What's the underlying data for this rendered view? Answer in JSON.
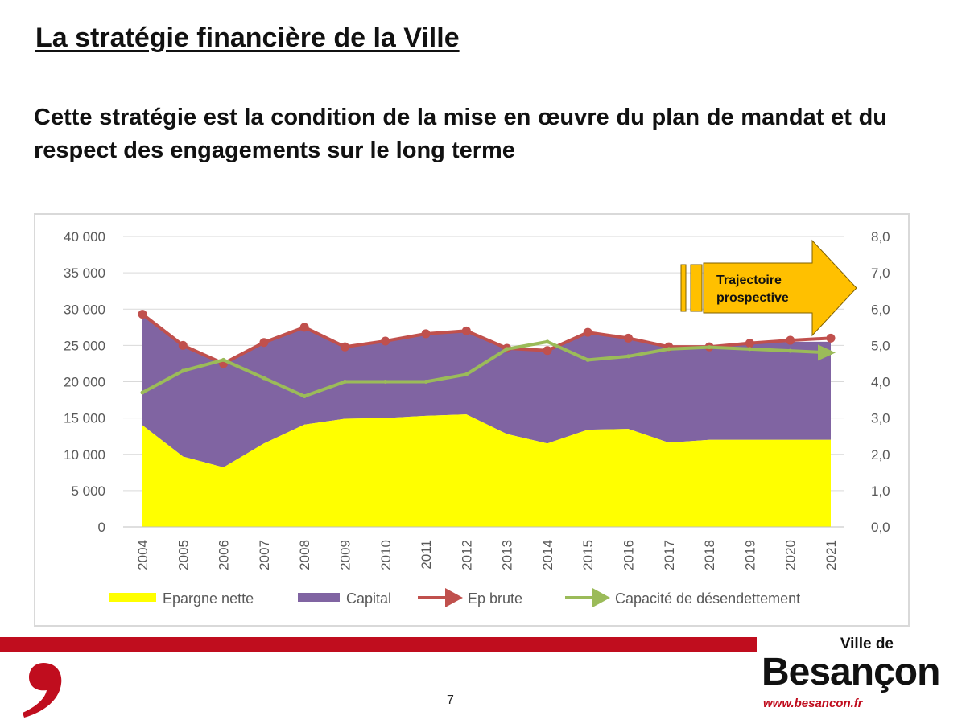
{
  "slide": {
    "title": "La stratégie financière de la Ville",
    "subtitle": "Cette stratégie est la condition de la mise en œuvre du plan de mandat et du respect des engagements sur le long terme",
    "page_number": "7"
  },
  "logo": {
    "small": "Ville de",
    "big": "Besançon",
    "url": "www.besancon.fr"
  },
  "colors": {
    "epargne_nette": "#ffff00",
    "capital": "#8064a2",
    "ep_brute": "#c0504d",
    "capacite": "#9bbb59",
    "arrow": "#ffc000",
    "brand_red": "#c00d1e"
  },
  "chart_data": {
    "type": "area",
    "categories": [
      "2004",
      "2005",
      "2006",
      "2007",
      "2008",
      "2009",
      "2010",
      "2011",
      "2012",
      "2013",
      "2014",
      "2015",
      "2016",
      "2017",
      "2018",
      "2019",
      "2020",
      "2021"
    ],
    "y_left": {
      "ylim": [
        0,
        40000
      ],
      "ticks": [
        "0",
        "5 000",
        "10 000",
        "15 000",
        "20 000",
        "25 000",
        "30 000",
        "35 000",
        "40 000"
      ]
    },
    "y_right": {
      "ylim": [
        0,
        8
      ],
      "ticks": [
        "0,0",
        "1,0",
        "2,0",
        "3,0",
        "4,0",
        "5,0",
        "6,0",
        "7,0",
        "8,0"
      ]
    },
    "series": [
      {
        "name": "Epargne nette",
        "kind": "area",
        "axis": "left",
        "values": [
          14000,
          9700,
          8200,
          11500,
          14100,
          14900,
          15000,
          15300,
          15500,
          12800,
          11500,
          13400,
          13500,
          11600,
          12000,
          12000,
          12000,
          12000
        ]
      },
      {
        "name": "Capital",
        "kind": "area-stacked",
        "axis": "left",
        "values": [
          15100,
          15200,
          14300,
          13900,
          13300,
          9800,
          10600,
          11300,
          11600,
          11800,
          12700,
          13300,
          12300,
          13100,
          12700,
          13200,
          13500,
          13500
        ]
      },
      {
        "name": "Ep brute",
        "kind": "line",
        "axis": "left",
        "values": [
          29300,
          25000,
          22500,
          25400,
          27500,
          24800,
          25600,
          26600,
          27000,
          24600,
          24300,
          26800,
          26000,
          24800,
          24800,
          25300,
          25700,
          26000
        ]
      },
      {
        "name": "Capacité de désendettement",
        "kind": "line",
        "axis": "right",
        "values": [
          3.7,
          4.3,
          4.6,
          4.1,
          3.6,
          4.0,
          4.0,
          4.0,
          4.2,
          4.9,
          5.1,
          4.6,
          4.7,
          4.9,
          4.95,
          4.9,
          4.85,
          4.8
        ]
      }
    ],
    "annotation": {
      "text": [
        "Trajectoire",
        "prospective"
      ]
    },
    "legend_position": "bottom",
    "grid": true
  }
}
